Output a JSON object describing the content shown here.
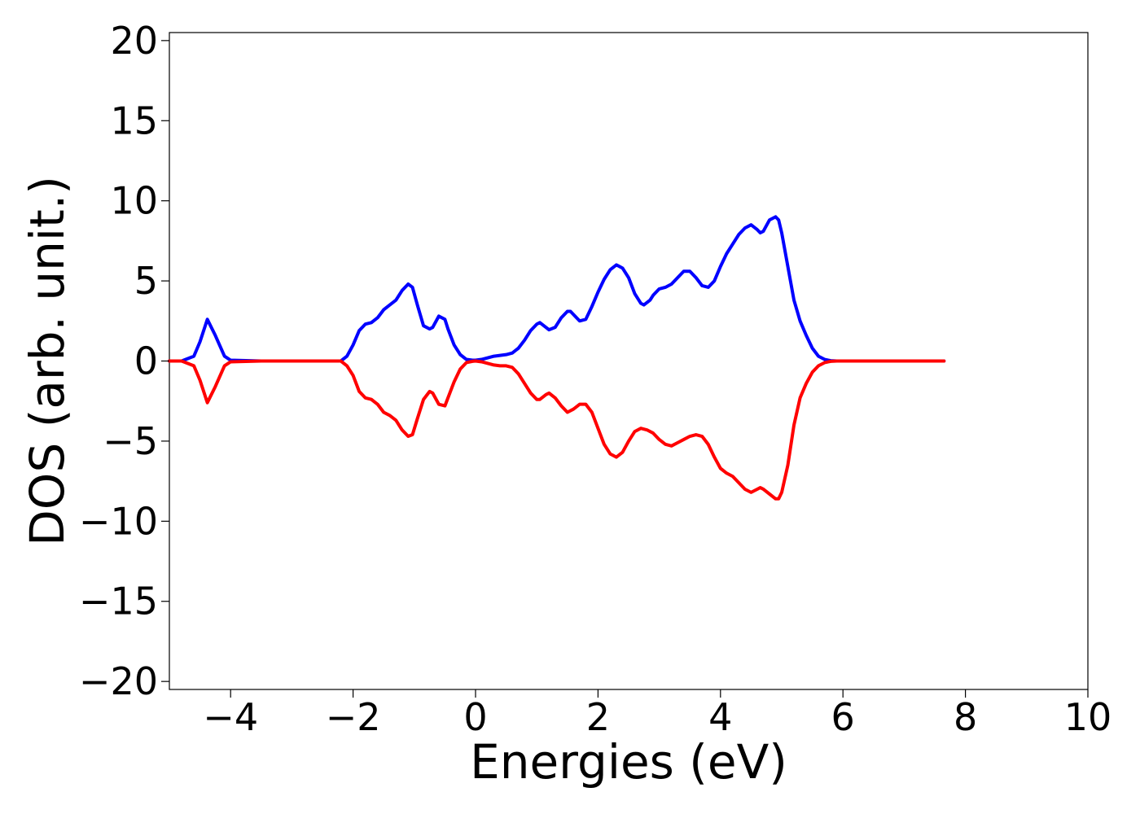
{
  "chart_data": {
    "type": "line",
    "title": "",
    "xlabel": "Energies (eV)",
    "ylabel": "DOS (arb. unit.)",
    "xlim": [
      -5,
      10
    ],
    "ylim": [
      -20.5,
      20.5
    ],
    "x_ticks": [
      -4,
      -2,
      0,
      2,
      4,
      6,
      8,
      10
    ],
    "y_ticks": [
      -20,
      -15,
      -10,
      -5,
      0,
      5,
      10,
      15,
      20
    ],
    "x_tick_labels": [
      "−4",
      "−2",
      "0",
      "2",
      "4",
      "6",
      "8",
      "10"
    ],
    "y_tick_labels": [
      "−20",
      "−15",
      "−10",
      "−5",
      "0",
      "5",
      "10",
      "15",
      "20"
    ],
    "grid": false,
    "legend": "none",
    "series": [
      {
        "color": "#0000ff",
        "x": [
          -5.0,
          -4.8,
          -4.6,
          -4.5,
          -4.38,
          -4.25,
          -4.1,
          -4.0,
          -3.5,
          -3.0,
          -2.5,
          -2.2,
          -2.1,
          -2.0,
          -1.9,
          -1.8,
          -1.7,
          -1.6,
          -1.5,
          -1.4,
          -1.3,
          -1.2,
          -1.1,
          -1.03,
          -0.95,
          -0.85,
          -0.75,
          -0.7,
          -0.6,
          -0.5,
          -0.45,
          -0.35,
          -0.25,
          -0.15,
          -0.05,
          0.0,
          0.1,
          0.2,
          0.3,
          0.4,
          0.5,
          0.6,
          0.7,
          0.8,
          0.9,
          1.0,
          1.05,
          1.15,
          1.2,
          1.3,
          1.4,
          1.5,
          1.55,
          1.65,
          1.7,
          1.8,
          1.9,
          2.0,
          2.1,
          2.2,
          2.3,
          2.4,
          2.5,
          2.6,
          2.7,
          2.75,
          2.85,
          2.9,
          3.0,
          3.1,
          3.2,
          3.3,
          3.4,
          3.5,
          3.6,
          3.7,
          3.8,
          3.9,
          4.0,
          4.1,
          4.2,
          4.3,
          4.4,
          4.5,
          4.6,
          4.65,
          4.7,
          4.8,
          4.9,
          4.95,
          5.0,
          5.1,
          5.2,
          5.3,
          5.4,
          5.5,
          5.6,
          5.7,
          5.8,
          5.9,
          6.0,
          7.0,
          7.65
        ],
        "y": [
          0.0,
          0.0,
          0.3,
          1.2,
          2.6,
          1.6,
          0.3,
          0.05,
          0.0,
          0.0,
          0.0,
          0.0,
          0.3,
          1.0,
          1.9,
          2.3,
          2.4,
          2.7,
          3.2,
          3.5,
          3.8,
          4.4,
          4.8,
          4.6,
          3.5,
          2.2,
          2.0,
          2.1,
          2.8,
          2.6,
          2.0,
          1.0,
          0.4,
          0.1,
          0.05,
          0.05,
          0.1,
          0.2,
          0.3,
          0.35,
          0.4,
          0.5,
          0.8,
          1.3,
          1.9,
          2.3,
          2.4,
          2.1,
          1.95,
          2.1,
          2.7,
          3.1,
          3.1,
          2.7,
          2.5,
          2.6,
          3.4,
          4.3,
          5.1,
          5.7,
          6.0,
          5.8,
          5.2,
          4.2,
          3.6,
          3.5,
          3.8,
          4.1,
          4.5,
          4.6,
          4.8,
          5.2,
          5.6,
          5.6,
          5.2,
          4.7,
          4.6,
          5.0,
          5.9,
          6.7,
          7.3,
          7.9,
          8.3,
          8.5,
          8.2,
          8.0,
          8.1,
          8.8,
          9.0,
          8.8,
          8.0,
          5.9,
          3.8,
          2.5,
          1.6,
          0.8,
          0.3,
          0.1,
          0.02,
          0.0,
          0.0,
          0.0,
          0.0
        ]
      },
      {
        "color": "#ff0000",
        "x": [
          -5.0,
          -4.8,
          -4.6,
          -4.5,
          -4.38,
          -4.25,
          -4.1,
          -4.0,
          -3.5,
          -3.0,
          -2.5,
          -2.2,
          -2.1,
          -2.0,
          -1.9,
          -1.8,
          -1.7,
          -1.6,
          -1.5,
          -1.4,
          -1.3,
          -1.2,
          -1.1,
          -1.03,
          -0.95,
          -0.85,
          -0.75,
          -0.7,
          -0.6,
          -0.5,
          -0.45,
          -0.35,
          -0.25,
          -0.15,
          -0.05,
          0.0,
          0.1,
          0.2,
          0.3,
          0.4,
          0.5,
          0.6,
          0.7,
          0.8,
          0.9,
          1.0,
          1.05,
          1.15,
          1.2,
          1.3,
          1.4,
          1.5,
          1.6,
          1.7,
          1.8,
          1.9,
          2.0,
          2.1,
          2.2,
          2.3,
          2.4,
          2.5,
          2.6,
          2.7,
          2.8,
          2.9,
          3.0,
          3.1,
          3.2,
          3.3,
          3.4,
          3.5,
          3.6,
          3.7,
          3.8,
          3.9,
          4.0,
          4.1,
          4.2,
          4.3,
          4.4,
          4.5,
          4.6,
          4.65,
          4.7,
          4.8,
          4.9,
          4.95,
          5.0,
          5.1,
          5.2,
          5.3,
          5.4,
          5.5,
          5.6,
          5.7,
          5.8,
          5.9,
          6.0,
          7.0,
          7.65
        ],
        "y": [
          0.0,
          0.0,
          -0.3,
          -1.2,
          -2.6,
          -1.6,
          -0.3,
          -0.05,
          0.0,
          0.0,
          0.0,
          0.0,
          -0.3,
          -0.9,
          -1.9,
          -2.3,
          -2.4,
          -2.7,
          -3.2,
          -3.4,
          -3.7,
          -4.3,
          -4.7,
          -4.6,
          -3.6,
          -2.4,
          -1.9,
          -2.0,
          -2.7,
          -2.8,
          -2.3,
          -1.3,
          -0.5,
          -0.1,
          -0.02,
          0.0,
          -0.05,
          -0.15,
          -0.25,
          -0.3,
          -0.3,
          -0.4,
          -0.8,
          -1.4,
          -2.0,
          -2.4,
          -2.4,
          -2.1,
          -2.0,
          -2.3,
          -2.8,
          -3.2,
          -3.0,
          -2.7,
          -2.7,
          -3.2,
          -4.2,
          -5.2,
          -5.8,
          -6.0,
          -5.7,
          -5.0,
          -4.4,
          -4.2,
          -4.3,
          -4.5,
          -4.9,
          -5.2,
          -5.3,
          -5.1,
          -4.9,
          -4.7,
          -4.6,
          -4.7,
          -5.2,
          -6.0,
          -6.7,
          -7.0,
          -7.2,
          -7.6,
          -8.0,
          -8.2,
          -8.0,
          -7.9,
          -8.0,
          -8.3,
          -8.6,
          -8.6,
          -8.2,
          -6.5,
          -4.0,
          -2.3,
          -1.4,
          -0.7,
          -0.3,
          -0.1,
          -0.02,
          0.0,
          0.0,
          0.0,
          0.0
        ]
      }
    ]
  }
}
